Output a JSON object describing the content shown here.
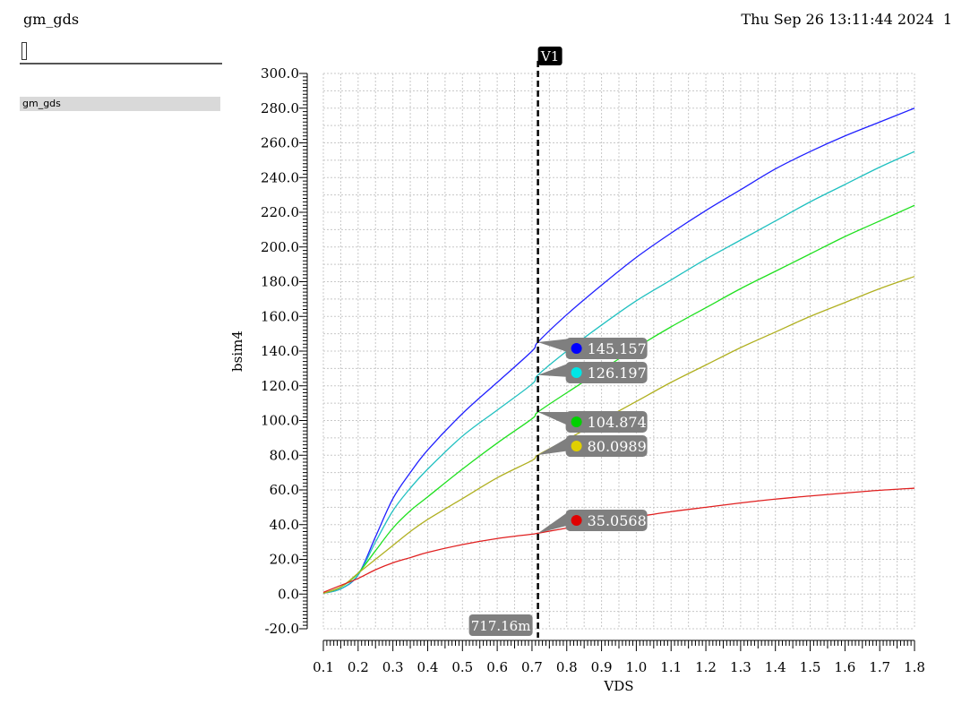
{
  "header": {
    "title": "gm_gds",
    "timestamp": "Thu Sep 26 13:11:44 2024",
    "page": "1"
  },
  "sidebar": {
    "filter_value": "",
    "items": [
      {
        "label": "gm_gds"
      }
    ]
  },
  "colors": {
    "series": [
      "#2020ff",
      "#20c0c0",
      "#20e020",
      "#b0b020",
      "#e02020"
    ],
    "marker_dots": [
      "#0000ff",
      "#00e5e5",
      "#00d000",
      "#e0d000",
      "#e00000"
    ],
    "label_bg": "#7f7f7f",
    "grid": "#c8c8c8"
  },
  "chart_data": {
    "type": "line",
    "xlabel": "VDS",
    "ylabel": "bsim4",
    "xlim": [
      0.1,
      1.8
    ],
    "ylim": [
      -20,
      300
    ],
    "grid": true,
    "xticks": [
      "0.1",
      "0.2",
      "0.3",
      "0.4",
      "0.5",
      "0.6",
      "0.7",
      "0.8",
      "0.9",
      "1.0",
      "1.1",
      "1.2",
      "1.3",
      "1.4",
      "1.5",
      "1.6",
      "1.7",
      "1.8"
    ],
    "yticks": [
      "-20.0",
      "0.0",
      "20.0",
      "40.0",
      "60.0",
      "80.0",
      "100.0",
      "120.0",
      "140.0",
      "160.0",
      "180.0",
      "200.0",
      "220.0",
      "240.0",
      "260.0",
      "280.0",
      "300.0"
    ],
    "x": [
      0.1,
      0.15,
      0.2,
      0.25,
      0.3,
      0.35,
      0.4,
      0.5,
      0.6,
      0.7,
      0.717,
      0.8,
      0.9,
      1.0,
      1.1,
      1.2,
      1.3,
      1.4,
      1.5,
      1.6,
      1.7,
      1.8
    ],
    "series": [
      {
        "values": [
          0.5,
          3,
          11,
          33,
          55,
          70,
          83,
          104,
          122,
          140,
          145.157,
          161,
          178,
          194,
          208,
          221,
          233,
          245,
          255,
          264,
          272,
          280
        ]
      },
      {
        "values": [
          0.5,
          3,
          11,
          30,
          48,
          61,
          72,
          91,
          106,
          121,
          126.197,
          140,
          155,
          169,
          181,
          193,
          204,
          215,
          226,
          236,
          246,
          255
        ]
      },
      {
        "values": [
          0.5,
          4,
          12,
          25,
          38,
          48,
          56,
          72,
          87,
          101,
          104.874,
          116,
          129,
          142,
          154,
          165,
          176,
          186,
          196,
          206,
          215,
          224
        ]
      },
      {
        "values": [
          0.5,
          4,
          12,
          20,
          28,
          36,
          43,
          55,
          67,
          77,
          80.0989,
          89,
          100,
          111,
          122,
          132,
          142,
          151,
          160,
          168,
          176,
          183
        ]
      },
      {
        "values": [
          1,
          5,
          9,
          14,
          18,
          21,
          24,
          28.5,
          32,
          34.5,
          35.0568,
          38,
          41.5,
          44.5,
          47.5,
          50,
          52.5,
          54.7,
          56.5,
          58.2,
          59.8,
          61
        ]
      }
    ],
    "marker": {
      "name": "V1",
      "x_value": 0.71716,
      "x_label": "717.16m",
      "values": [
        "145.157",
        "126.197",
        "104.874",
        "80.0989",
        "35.0568"
      ]
    }
  }
}
